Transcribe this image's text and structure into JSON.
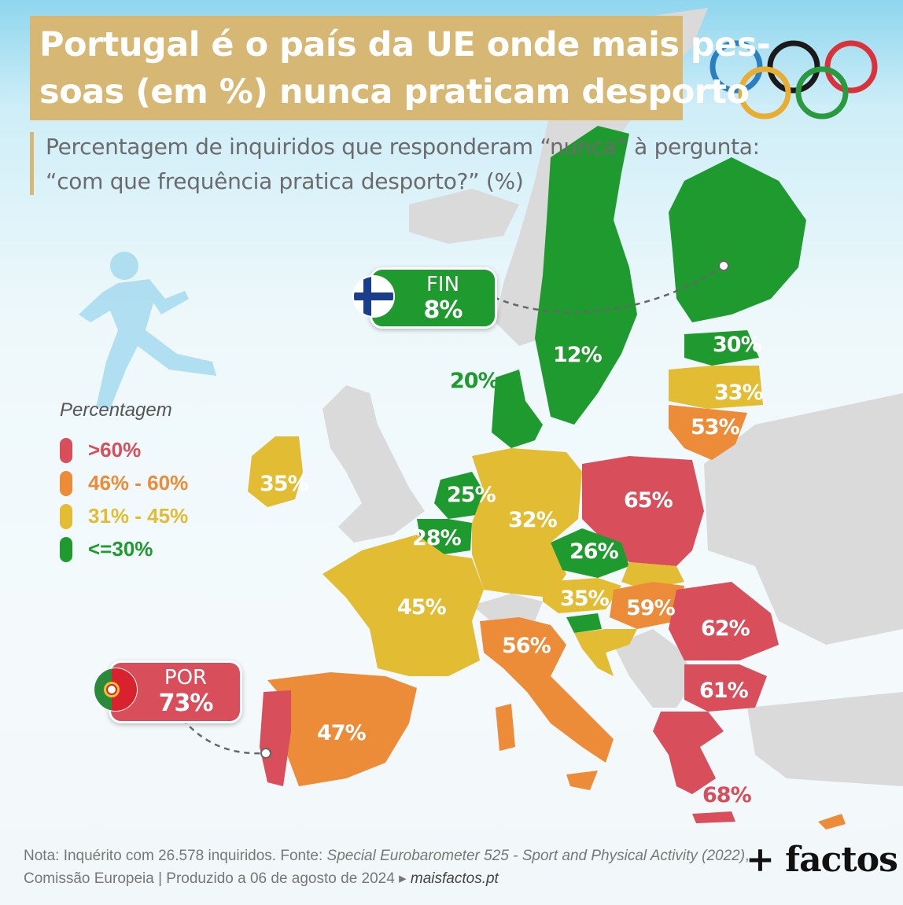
{
  "title": {
    "line1": "Portugal é o país da UE onde mais pes-",
    "line2": "soas (em %) nunca praticam desporto"
  },
  "subtitle": {
    "line1": "Percentagem de inquiridos que responderam “nunca” à pergunta:",
    "line2": "“com que frequência pratica desporto?” (%)"
  },
  "legend": {
    "title": "Percentagem",
    "items": [
      {
        "label": ">60%",
        "color": "#d94e5b"
      },
      {
        "label": "46% - 60%",
        "color": "#ec8c38"
      },
      {
        "label": "31% - 45%",
        "color": "#e2bc33"
      },
      {
        "label": "<=30%",
        "color": "#1f9a2e"
      }
    ]
  },
  "countries": {
    "FIN": "8%",
    "SWE": "12%",
    "DNK": "20%",
    "EST": "30%",
    "LVA": "33%",
    "LTU": "53%",
    "IRL": "35%",
    "NLD": "25%",
    "BEL": "28%",
    "DEU": "32%",
    "POL": "65%",
    "CZE": "26%",
    "FRA": "45%",
    "AUT": "35%",
    "HUN": "59%",
    "ROU": "62%",
    "ITA": "56%",
    "BGR": "61%",
    "ESP": "47%",
    "GRC": "68%",
    "POR": "73%"
  },
  "callouts": {
    "fin": {
      "code": "FIN",
      "value": "8%"
    },
    "por": {
      "code": "POR",
      "value": "73%"
    }
  },
  "note": {
    "line1_prefix": "Nota: Inquérito com 26.578 inquiridos. Fonte: ",
    "line1_source": "Special Eurobarometer 525 - Sport and Physical Activity (2022)",
    "line1_suffix": ",",
    "line2_prefix": "Comissão Europeia | Produzido a 06 de agosto de 2024 ▸ ",
    "line2_site": "maisfactos.pt"
  },
  "brand": "+ factos",
  "colors": {
    "red": "#d94e5b",
    "orange": "#ec8c38",
    "yellow": "#e2bc33",
    "green": "#1f9a2e",
    "nonEU": "#dadada",
    "title_bg": "#d6b773"
  },
  "icons": [
    "olympic-rings-icon",
    "runner-icon",
    "finland-flag-icon",
    "portugal-flag-icon"
  ]
}
